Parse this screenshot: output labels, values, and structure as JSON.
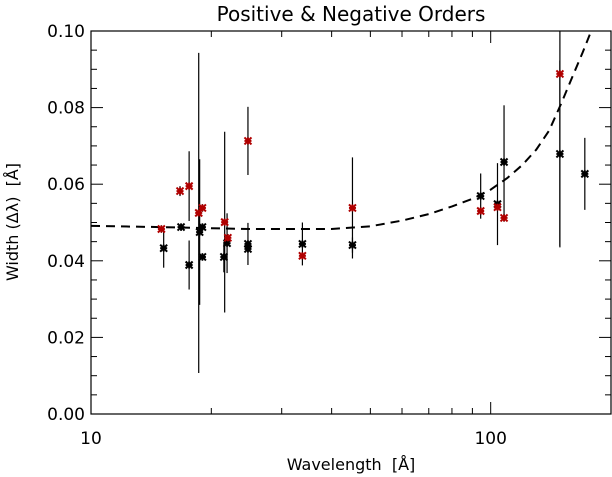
{
  "chart_data": {
    "type": "scatter",
    "title": "Positive & Negative Orders",
    "xlabel": "Wavelength  [Å]",
    "ylabel": "Width (Δλ)  [Å]",
    "xscale": "log",
    "xlim": [
      10,
      200
    ],
    "ylim": [
      0.0,
      0.1
    ],
    "x_ticks": [
      {
        "value": 10,
        "label": "10"
      },
      {
        "value": 100,
        "label": "100"
      }
    ],
    "y_ticks": [
      {
        "value": 0.0,
        "label": "0.00"
      },
      {
        "value": 0.02,
        "label": "0.02"
      },
      {
        "value": 0.04,
        "label": "0.04"
      },
      {
        "value": 0.06,
        "label": "0.06"
      },
      {
        "value": 0.08,
        "label": "0.08"
      },
      {
        "value": 0.1,
        "label": "0.10"
      }
    ],
    "grid": false,
    "series": [
      {
        "name": "black",
        "color": "#000000",
        "marker": "asterisk",
        "points": [
          {
            "x": 15.2,
            "y": 0.0433,
            "err": 0.0051
          },
          {
            "x": 16.8,
            "y": 0.0488,
            "err": 0.001
          },
          {
            "x": 17.6,
            "y": 0.0389,
            "err": 0.0064
          },
          {
            "x": 18.7,
            "y": 0.0475,
            "err": 0.019
          },
          {
            "x": 19.0,
            "y": 0.0488,
            "err": 0.001
          },
          {
            "x": 19.0,
            "y": 0.041,
            "err": 0.001
          },
          {
            "x": 21.5,
            "y": 0.041,
            "err": 0.004
          },
          {
            "x": 21.9,
            "y": 0.0446,
            "err": 0.0078
          },
          {
            "x": 24.7,
            "y": 0.0444,
            "err": 0.0055
          },
          {
            "x": 24.7,
            "y": 0.0431,
            "err": 0.001
          },
          {
            "x": 33.8,
            "y": 0.0444,
            "err": 0.0056
          },
          {
            "x": 45.1,
            "y": 0.0441,
            "err": 0.002
          },
          {
            "x": 94.4,
            "y": 0.0569,
            "err": 0.0059
          },
          {
            "x": 104,
            "y": 0.0548,
            "err": 0.0107
          },
          {
            "x": 108,
            "y": 0.0658,
            "err": 0.0148
          },
          {
            "x": 149,
            "y": 0.0679,
            "err": 0.0244
          },
          {
            "x": 172,
            "y": 0.0627,
            "err": 0.0094
          }
        ]
      },
      {
        "name": "red",
        "color": "#b00000",
        "marker": "asterisk",
        "points": [
          {
            "x": 15.0,
            "y": 0.0483,
            "err": 0.001
          },
          {
            "x": 16.7,
            "y": 0.0582,
            "err": 0.0013
          },
          {
            "x": 17.6,
            "y": 0.0595,
            "err": 0.0091
          },
          {
            "x": 18.6,
            "y": 0.0525,
            "err": 0.0418
          },
          {
            "x": 19.0,
            "y": 0.0538,
            "err": 0.001
          },
          {
            "x": 21.6,
            "y": 0.0501,
            "err": 0.0236
          },
          {
            "x": 22.0,
            "y": 0.046,
            "err": 0.001
          },
          {
            "x": 24.7,
            "y": 0.0713,
            "err": 0.0089
          },
          {
            "x": 33.8,
            "y": 0.0413,
            "err": 0.001
          },
          {
            "x": 45.1,
            "y": 0.0538,
            "err": 0.0132
          },
          {
            "x": 94.4,
            "y": 0.053,
            "err": 0.001
          },
          {
            "x": 104,
            "y": 0.054,
            "err": 0.001
          },
          {
            "x": 108,
            "y": 0.0512,
            "err": 0.001
          },
          {
            "x": 149,
            "y": 0.0888,
            "err": 0.045
          }
        ]
      }
    ],
    "fit_curve": {
      "style": "dashed",
      "color": "#000000",
      "x": [
        10,
        15,
        20,
        25,
        30,
        40,
        50,
        60,
        70,
        80,
        90,
        100,
        110,
        120,
        130,
        140,
        150,
        160,
        170,
        180
      ],
      "y": [
        0.0491,
        0.0488,
        0.0485,
        0.0483,
        0.0483,
        0.0483,
        0.049,
        0.0505,
        0.0522,
        0.0542,
        0.0562,
        0.0586,
        0.0616,
        0.065,
        0.069,
        0.074,
        0.081,
        0.088,
        0.0945,
        0.101
      ]
    }
  }
}
